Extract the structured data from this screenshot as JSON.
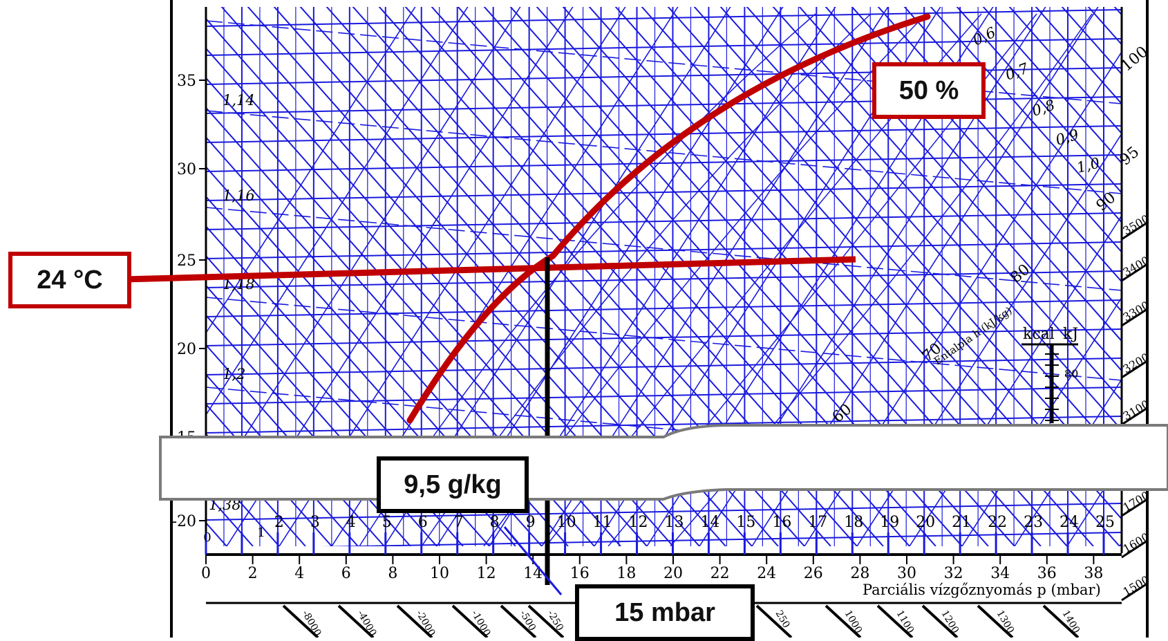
{
  "chart_data": {
    "type": "line",
    "title": "",
    "temperature_axis": {
      "ticks": [
        "35",
        "30",
        "25",
        "20",
        "15",
        "-20"
      ]
    },
    "density_labels": [
      "1,14",
      "1,16",
      "1,18",
      "1,2",
      "1,38"
    ],
    "moisture_axis": {
      "ticks": [
        "0",
        "1",
        "2",
        "3",
        "4",
        "5",
        "6",
        "7",
        "8",
        "9",
        "10",
        "11",
        "12",
        "13",
        "14",
        "15",
        "16",
        "17",
        "18",
        "19",
        "20",
        "21",
        "22",
        "23",
        "24",
        "25"
      ]
    },
    "pressure_axis": {
      "label": "Parciális vízgőznyomás p (mbar)",
      "ticks": [
        "0",
        "2",
        "4",
        "6",
        "8",
        "10",
        "12",
        "14",
        "16",
        "18",
        "20",
        "22",
        "24",
        "26",
        "28",
        "30",
        "32",
        "34",
        "36",
        "38"
      ]
    },
    "relative_humidity_labels": [
      "0,6",
      "0,7",
      "0,8",
      "0,9",
      "1,0"
    ],
    "enthalpy_axis": {
      "label": "Entalpia h (kJ/kg)",
      "ticks": [
        "60",
        "70",
        "80",
        "90",
        "95",
        "100"
      ]
    },
    "right_scale_ticks": [
      "3500",
      "3400",
      "3300",
      "3200",
      "3100",
      "1700",
      "1600",
      "1500"
    ],
    "bottom_scale_ticks": [
      "-8000",
      "-4000",
      "-2000",
      "-1000",
      "-500",
      "-250",
      "250",
      "1000",
      "1100",
      "1200",
      "1300",
      "1400"
    ],
    "unit_scale": {
      "kcal": "kcal",
      "kj": "kJ",
      "value": "80"
    },
    "annotations": {
      "temperature": "24 °C",
      "relative_humidity": "50 %",
      "moisture_content": "9,5 g/kg",
      "vapour_pressure": "15 mbar"
    },
    "reading": {
      "temperature_c": 24,
      "relative_humidity_percent": 50,
      "moisture_g_per_kg": 9.5,
      "pressure_mbar": 15
    },
    "colors": {
      "grid": "#1a1adf",
      "annotation_red": "#c00000",
      "annotation_black": "#000000"
    }
  }
}
